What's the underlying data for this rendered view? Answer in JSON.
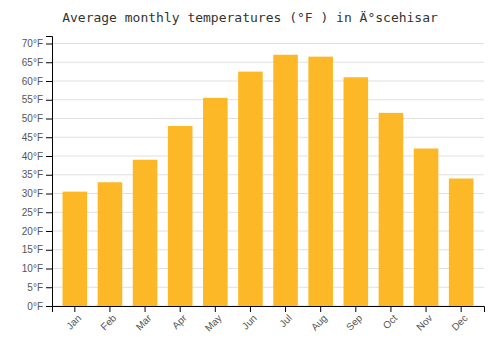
{
  "chart_data": {
    "type": "bar",
    "title": "Average monthly temperatures (°F ) in Ä°scehisar",
    "categories": [
      "Jan",
      "Feb",
      "Mar",
      "Apr",
      "May",
      "Jun",
      "Jul",
      "Aug",
      "Sep",
      "Oct",
      "Nov",
      "Dec"
    ],
    "values": [
      30.5,
      33.0,
      39.0,
      48.0,
      55.5,
      62.5,
      67.0,
      66.5,
      61.0,
      51.5,
      42.0,
      34.0
    ],
    "color": "#FDB827",
    "ylim": [
      0,
      72
    ],
    "yticks": [
      {
        "value": 0,
        "label": "0°F"
      },
      {
        "value": 5,
        "label": "5°F"
      },
      {
        "value": 10,
        "label": "10°F"
      },
      {
        "value": 15,
        "label": "15°F"
      },
      {
        "value": 20,
        "label": "20°F"
      },
      {
        "value": 25,
        "label": "25°F"
      },
      {
        "value": 30,
        "label": "30°F"
      },
      {
        "value": 35,
        "label": "35°F"
      },
      {
        "value": 40,
        "label": "40°F"
      },
      {
        "value": 45,
        "label": "45°F"
      },
      {
        "value": 50,
        "label": "50°F"
      },
      {
        "value": 55,
        "label": "55°F"
      },
      {
        "value": 60,
        "label": "60°F"
      },
      {
        "value": 65,
        "label": "65°F"
      },
      {
        "value": 70,
        "label": "70°F"
      }
    ],
    "grid": true
  }
}
